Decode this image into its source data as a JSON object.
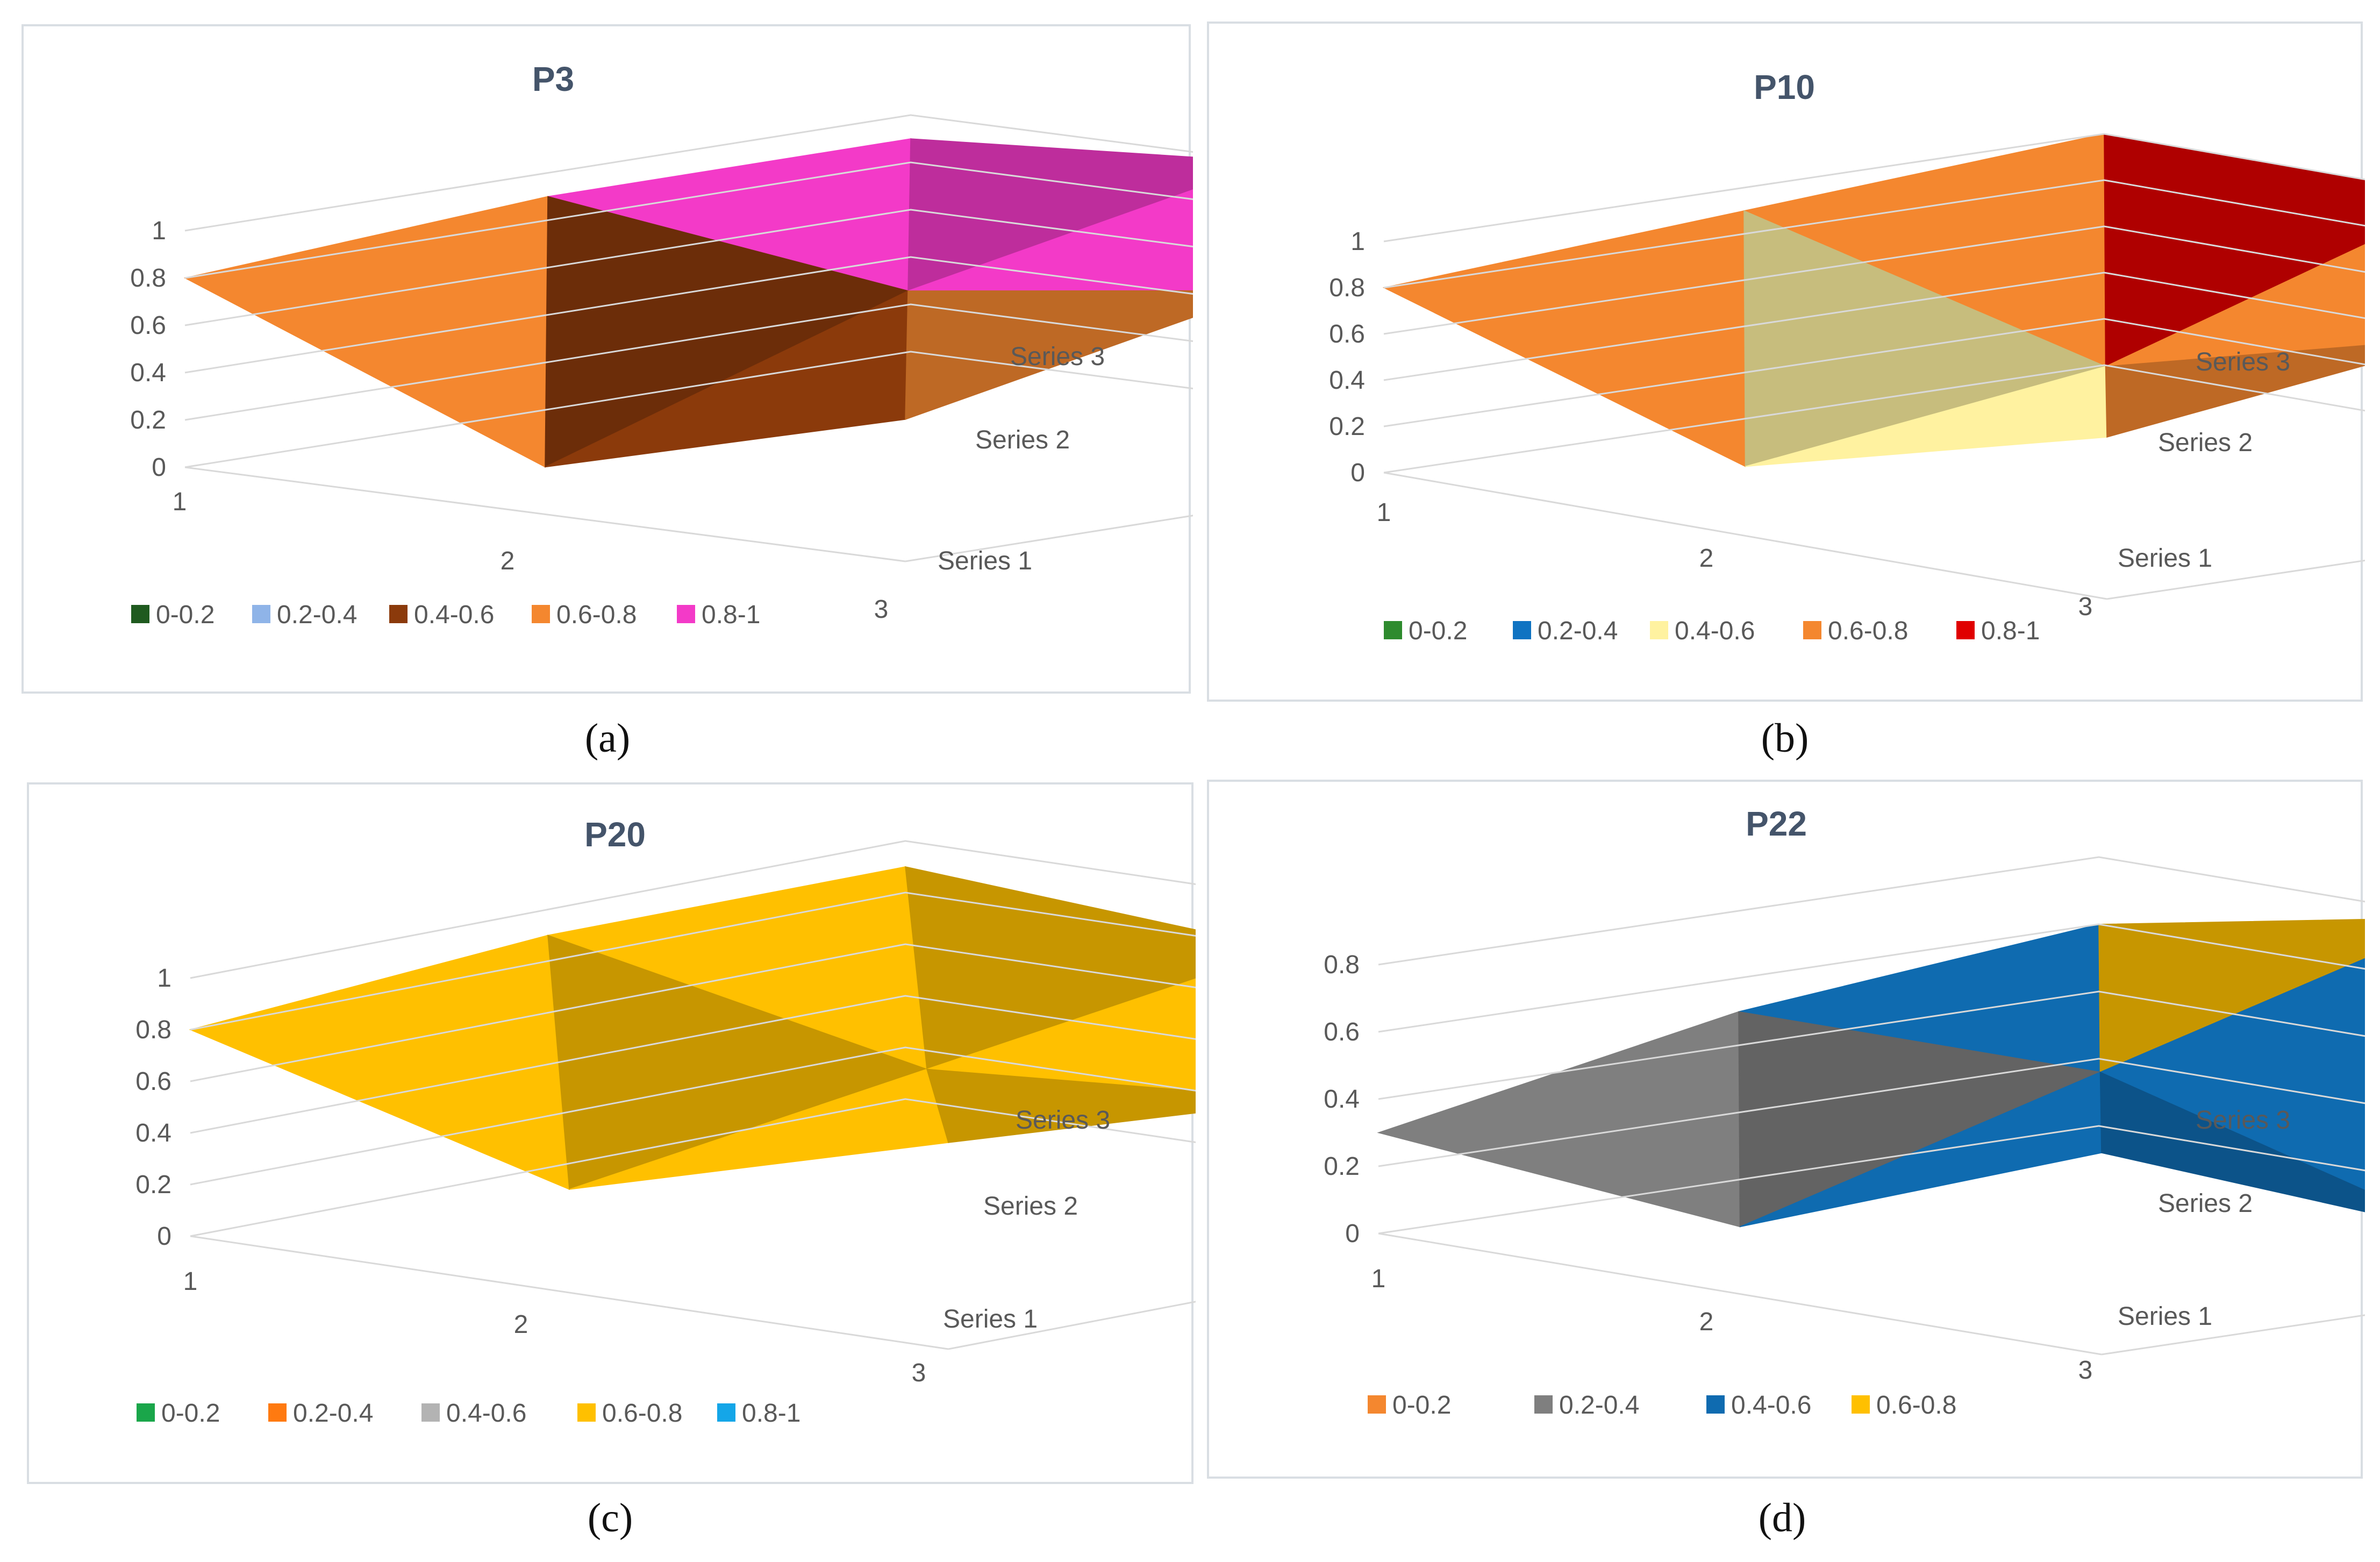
{
  "captions": [
    "(a)",
    "(b)",
    "(c)",
    "(d)"
  ],
  "chart_data": [
    {
      "type": "surface",
      "title": "P3",
      "x_ticks": [
        "1",
        "2",
        "3"
      ],
      "z_ticks": [
        "0",
        "0.2",
        "0.4",
        "0.6",
        "0.8",
        "1"
      ],
      "series_labels": [
        "Series 1",
        "Series 2",
        "Series 3"
      ],
      "legend": [
        {
          "label": "0-0.2",
          "color": "#1f5a1f"
        },
        {
          "label": "0.2-0.4",
          "color": "#8fb4e8"
        },
        {
          "label": "0.4-0.6",
          "color": "#8b3a0b"
        },
        {
          "label": "0.6-0.8",
          "color": "#f4872f"
        },
        {
          "label": "0.8-1",
          "color": "#f33ac8"
        }
      ],
      "series": [
        {
          "name": "Series 1",
          "values": [
            0.8,
            0.2,
            0.6
          ]
        },
        {
          "name": "Series 2",
          "values": [
            0.9,
            0.7,
            0.9
          ]
        },
        {
          "name": "Series 3",
          "values": [
            0.9,
            1.0,
            0.3
          ]
        }
      ],
      "zlim": [
        0,
        1
      ]
    },
    {
      "type": "surface",
      "title": "P10",
      "x_ticks": [
        "1",
        "2",
        "3"
      ],
      "z_ticks": [
        "0",
        "0.2",
        "0.4",
        "0.6",
        "0.8",
        "1"
      ],
      "series_labels": [
        "Series 1",
        "Series 2",
        "Series 3"
      ],
      "legend": [
        {
          "label": "0-0.2",
          "color": "#2e8b2e"
        },
        {
          "label": "0.2-0.4",
          "color": "#0f73c2"
        },
        {
          "label": "0.4-0.6",
          "color": "#fff2a0"
        },
        {
          "label": "0.6-0.8",
          "color": "#f4872f"
        },
        {
          "label": "0.8-1",
          "color": "#e00000"
        }
      ],
      "series": [
        {
          "name": "Series 1",
          "values": [
            0.8,
            0.3,
            0.7
          ]
        },
        {
          "name": "Series 2",
          "values": [
            0.9,
            0.5,
            0.9
          ]
        },
        {
          "name": "Series 3",
          "values": [
            1.0,
            1.0,
            0.3
          ]
        }
      ],
      "zlim": [
        0,
        1
      ]
    },
    {
      "type": "surface",
      "title": "P20",
      "x_ticks": [
        "1",
        "2",
        "3"
      ],
      "z_ticks": [
        "0",
        "0.2",
        "0.4",
        "0.6",
        "0.8",
        "1"
      ],
      "series_labels": [
        "Series 1",
        "Series 2",
        "Series 3"
      ],
      "legend": [
        {
          "label": "0-0.2",
          "color": "#1aa64a"
        },
        {
          "label": "0.2-0.4",
          "color": "#ff7a10"
        },
        {
          "label": "0.4-0.6",
          "color": "#b3b3b3"
        },
        {
          "label": "0.6-0.8",
          "color": "#ffc000"
        },
        {
          "label": "0.8-1",
          "color": "#14a6e8"
        }
      ],
      "series": [
        {
          "name": "Series 1",
          "values": [
            0.8,
            0.4,
            0.8
          ]
        },
        {
          "name": "Series 2",
          "values": [
            0.9,
            0.6,
            0.7
          ]
        },
        {
          "name": "Series 3",
          "values": [
            0.9,
            0.8,
            0.3
          ]
        }
      ],
      "zlim": [
        0,
        1
      ]
    },
    {
      "type": "surface",
      "title": "P22",
      "x_ticks": [
        "1",
        "2",
        "3"
      ],
      "z_ticks": [
        "0",
        "0.2",
        "0.4",
        "0.6",
        "0.8"
      ],
      "series_labels": [
        "Series 1",
        "Series 2",
        "Series 3"
      ],
      "legend": [
        {
          "label": "0-0.2",
          "color": "#f4872f"
        },
        {
          "label": "0.2-0.4",
          "color": "#7f7f7f"
        },
        {
          "label": "0.4-0.6",
          "color": "#0f6bb0"
        },
        {
          "label": "0.6-0.8",
          "color": "#ffc000"
        }
      ],
      "series": [
        {
          "name": "Series 1",
          "values": [
            0.3,
            0.2,
            0.6
          ]
        },
        {
          "name": "Series 2",
          "values": [
            0.5,
            0.5,
            0.2
          ]
        },
        {
          "name": "Series 3",
          "values": [
            0.6,
            0.8,
            0.4
          ]
        }
      ],
      "zlim": [
        0,
        0.8
      ]
    }
  ]
}
